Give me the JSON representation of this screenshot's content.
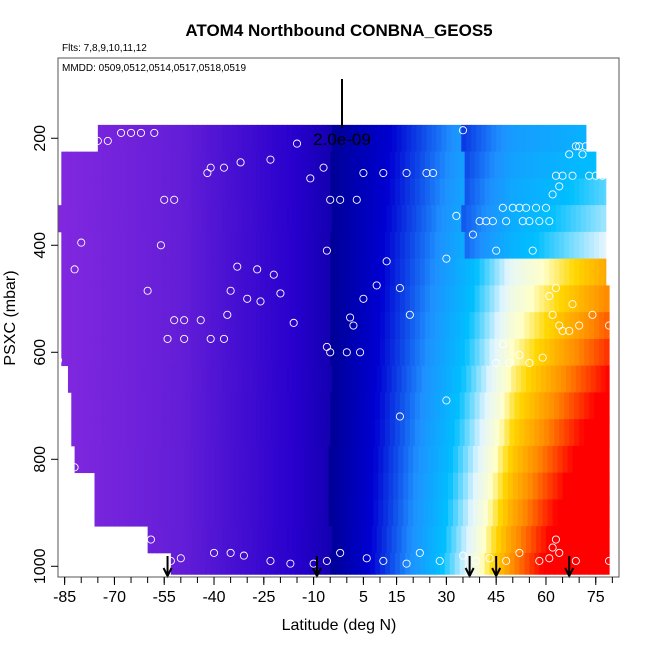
{
  "chart_data": {
    "type": "heatmap",
    "title": "ATOM4 Northbound CONBNA_GEOS5",
    "flights_label": "Flts: 7,8,9,10,11,12",
    "mmdd_label": "MMDD: 0509,0512,0514,0517,0518,0519",
    "xlabel": "Latitude (deg N)",
    "ylabel": "PSXC (mbar)",
    "xlim": [
      -87,
      82
    ],
    "ylim": [
      1020,
      50
    ],
    "x_ticks": [
      -85,
      -70,
      -55,
      -40,
      -25,
      -10,
      5,
      15,
      30,
      45,
      60,
      75
    ],
    "x_tick_labels": [
      "-85",
      "-70",
      "-55",
      "-40",
      "-25",
      "-10",
      "5",
      "15",
      "30",
      "45",
      "60",
      "75"
    ],
    "y_ticks": [
      200,
      400,
      600,
      800,
      1000
    ],
    "y_tick_labels": [
      "200",
      "400",
      "600",
      "800",
      "1000"
    ],
    "scale_bar_label": "2.0e-09",
    "colors": {
      "low": "#8a2be2",
      "mid_low": "#0000c8",
      "mid": "#1e90ff",
      "mid_high": "#ffffe0",
      "high": "#ff0000"
    },
    "layers": [
      {
        "p_top": 175,
        "p_bot": 225,
        "lat_min": -75,
        "lat_max": 72
      },
      {
        "p_top": 225,
        "p_bot": 275,
        "lat_min": -86,
        "lat_max": 75
      },
      {
        "p_top": 275,
        "p_bot": 325,
        "lat_min": -86,
        "lat_max": 78
      },
      {
        "p_top": 325,
        "p_bot": 375,
        "lat_min": -87,
        "lat_max": 78
      },
      {
        "p_top": 375,
        "p_bot": 425,
        "lat_min": -86,
        "lat_max": 78
      },
      {
        "p_top": 425,
        "p_bot": 475,
        "lat_min": -86,
        "lat_max": 78
      },
      {
        "p_top": 475,
        "p_bot": 525,
        "lat_min": -86,
        "lat_max": 79
      },
      {
        "p_top": 525,
        "p_bot": 575,
        "lat_min": -86,
        "lat_max": 79
      },
      {
        "p_top": 575,
        "p_bot": 625,
        "lat_min": -86,
        "lat_max": 79
      },
      {
        "p_top": 625,
        "p_bot": 675,
        "lat_min": -84,
        "lat_max": 79
      },
      {
        "p_top": 675,
        "p_bot": 725,
        "lat_min": -83,
        "lat_max": 79
      },
      {
        "p_top": 725,
        "p_bot": 775,
        "lat_min": -83,
        "lat_max": 79
      },
      {
        "p_top": 775,
        "p_bot": 825,
        "lat_min": -82,
        "lat_max": 79
      },
      {
        "p_top": 825,
        "p_bot": 875,
        "lat_min": -76,
        "lat_max": 79
      },
      {
        "p_top": 875,
        "p_bot": 925,
        "lat_min": -76,
        "lat_max": 79
      },
      {
        "p_top": 925,
        "p_bot": 975,
        "lat_min": -60,
        "lat_max": 79
      },
      {
        "p_top": 975,
        "p_bot": 1015,
        "lat_min": -53,
        "lat_max": 79
      }
    ],
    "observations": [
      {
        "lat": -86,
        "p": 215
      },
      {
        "lat": -84,
        "p": 215
      },
      {
        "lat": -75,
        "p": 205
      },
      {
        "lat": -72,
        "p": 205
      },
      {
        "lat": -68,
        "p": 190
      },
      {
        "lat": -65,
        "p": 190
      },
      {
        "lat": -62,
        "p": 190
      },
      {
        "lat": -58,
        "p": 190
      },
      {
        "lat": -80,
        "p": 395
      },
      {
        "lat": -82,
        "p": 445
      },
      {
        "lat": -56,
        "p": 400
      },
      {
        "lat": -55,
        "p": 315
      },
      {
        "lat": -52,
        "p": 315
      },
      {
        "lat": -42,
        "p": 265
      },
      {
        "lat": -41,
        "p": 255
      },
      {
        "lat": -37,
        "p": 255
      },
      {
        "lat": -32,
        "p": 245
      },
      {
        "lat": -23,
        "p": 240
      },
      {
        "lat": -15,
        "p": 210
      },
      {
        "lat": -11,
        "p": 275
      },
      {
        "lat": -7,
        "p": 255
      },
      {
        "lat": -5,
        "p": 315
      },
      {
        "lat": -2,
        "p": 315
      },
      {
        "lat": 3,
        "p": 315
      },
      {
        "lat": 5,
        "p": 265
      },
      {
        "lat": 11,
        "p": 265
      },
      {
        "lat": 18,
        "p": 265
      },
      {
        "lat": 24,
        "p": 265
      },
      {
        "lat": 26,
        "p": 265
      },
      {
        "lat": 35,
        "p": 185
      },
      {
        "lat": -6,
        "p": 410
      },
      {
        "lat": 5,
        "p": 500
      },
      {
        "lat": 9,
        "p": 475
      },
      {
        "lat": 12,
        "p": 430
      },
      {
        "lat": 16,
        "p": 480
      },
      {
        "lat": 19,
        "p": 530
      },
      {
        "lat": 30,
        "p": 425
      },
      {
        "lat": 33,
        "p": 345
      },
      {
        "lat": 38,
        "p": 380
      },
      {
        "lat": 40,
        "p": 355
      },
      {
        "lat": 42,
        "p": 355
      },
      {
        "lat": 44,
        "p": 355
      },
      {
        "lat": 47,
        "p": 330
      },
      {
        "lat": 48,
        "p": 355
      },
      {
        "lat": 50,
        "p": 330
      },
      {
        "lat": 52,
        "p": 330
      },
      {
        "lat": 53,
        "p": 355
      },
      {
        "lat": 54,
        "p": 330
      },
      {
        "lat": 55,
        "p": 355
      },
      {
        "lat": 57,
        "p": 330
      },
      {
        "lat": 58,
        "p": 355
      },
      {
        "lat": 60,
        "p": 330
      },
      {
        "lat": 61,
        "p": 355
      },
      {
        "lat": 62,
        "p": 305
      },
      {
        "lat": 63,
        "p": 270
      },
      {
        "lat": 64,
        "p": 290
      },
      {
        "lat": 65,
        "p": 270
      },
      {
        "lat": 67,
        "p": 230
      },
      {
        "lat": 68,
        "p": 270
      },
      {
        "lat": 69,
        "p": 215
      },
      {
        "lat": 70,
        "p": 215
      },
      {
        "lat": 71,
        "p": 230
      },
      {
        "lat": 72,
        "p": 215
      },
      {
        "lat": 73,
        "p": 270
      },
      {
        "lat": 75,
        "p": 270
      },
      {
        "lat": 77,
        "p": 270
      },
      {
        "lat": 45,
        "p": 410
      },
      {
        "lat": 56,
        "p": 410
      },
      {
        "lat": 61,
        "p": 495
      },
      {
        "lat": 62,
        "p": 530
      },
      {
        "lat": 64,
        "p": 550
      },
      {
        "lat": 65,
        "p": 560
      },
      {
        "lat": 67,
        "p": 560
      },
      {
        "lat": 70,
        "p": 550
      },
      {
        "lat": 74,
        "p": 530
      },
      {
        "lat": 79,
        "p": 550
      },
      {
        "lat": 63,
        "p": 480
      },
      {
        "lat": 68,
        "p": 510
      },
      {
        "lat": -52,
        "p": 540
      },
      {
        "lat": -49,
        "p": 540
      },
      {
        "lat": -44,
        "p": 540
      },
      {
        "lat": -36,
        "p": 530
      },
      {
        "lat": -30,
        "p": 500
      },
      {
        "lat": -26,
        "p": 505
      },
      {
        "lat": -20,
        "p": 490
      },
      {
        "lat": -16,
        "p": 545
      },
      {
        "lat": -35,
        "p": 485
      },
      {
        "lat": -33,
        "p": 440
      },
      {
        "lat": -27,
        "p": 445
      },
      {
        "lat": -22,
        "p": 455
      },
      {
        "lat": -60,
        "p": 485
      },
      {
        "lat": -54,
        "p": 575
      },
      {
        "lat": -49,
        "p": 575
      },
      {
        "lat": -41,
        "p": 575
      },
      {
        "lat": -37,
        "p": 575
      },
      {
        "lat": -6,
        "p": 590
      },
      {
        "lat": -5,
        "p": 600
      },
      {
        "lat": 0,
        "p": 600
      },
      {
        "lat": 4,
        "p": 600
      },
      {
        "lat": 1,
        "p": 535
      },
      {
        "lat": 2,
        "p": 550
      },
      {
        "lat": -87,
        "p": 615
      },
      {
        "lat": 30,
        "p": 690
      },
      {
        "lat": 16,
        "p": 720
      },
      {
        "lat": 47,
        "p": 585
      },
      {
        "lat": 45,
        "p": 620
      },
      {
        "lat": 49,
        "p": 620
      },
      {
        "lat": 52,
        "p": 605
      },
      {
        "lat": 55,
        "p": 620
      },
      {
        "lat": 59,
        "p": 610
      },
      {
        "lat": -82,
        "p": 815
      },
      {
        "lat": -59,
        "p": 950
      },
      {
        "lat": -53,
        "p": 990
      },
      {
        "lat": -50,
        "p": 985
      },
      {
        "lat": -40,
        "p": 975
      },
      {
        "lat": -35,
        "p": 975
      },
      {
        "lat": -31,
        "p": 980
      },
      {
        "lat": -23,
        "p": 990
      },
      {
        "lat": -17,
        "p": 995
      },
      {
        "lat": -10,
        "p": 995
      },
      {
        "lat": -6,
        "p": 990
      },
      {
        "lat": -2,
        "p": 975
      },
      {
        "lat": 6,
        "p": 985
      },
      {
        "lat": 11,
        "p": 990
      },
      {
        "lat": 18,
        "p": 995
      },
      {
        "lat": 22,
        "p": 975
      },
      {
        "lat": 28,
        "p": 990
      },
      {
        "lat": 35,
        "p": 980
      },
      {
        "lat": 39,
        "p": 990
      },
      {
        "lat": 43,
        "p": 985
      },
      {
        "lat": 48,
        "p": 990
      },
      {
        "lat": 52,
        "p": 975
      },
      {
        "lat": 58,
        "p": 990
      },
      {
        "lat": 61,
        "p": 985
      },
      {
        "lat": 62,
        "p": 965
      },
      {
        "lat": 63,
        "p": 950
      },
      {
        "lat": 64,
        "p": 975
      },
      {
        "lat": 69,
        "p": 990
      },
      {
        "lat": 79,
        "p": 990
      }
    ],
    "flight_arrows_lat": [
      -54,
      -9,
      37,
      45,
      67
    ]
  }
}
